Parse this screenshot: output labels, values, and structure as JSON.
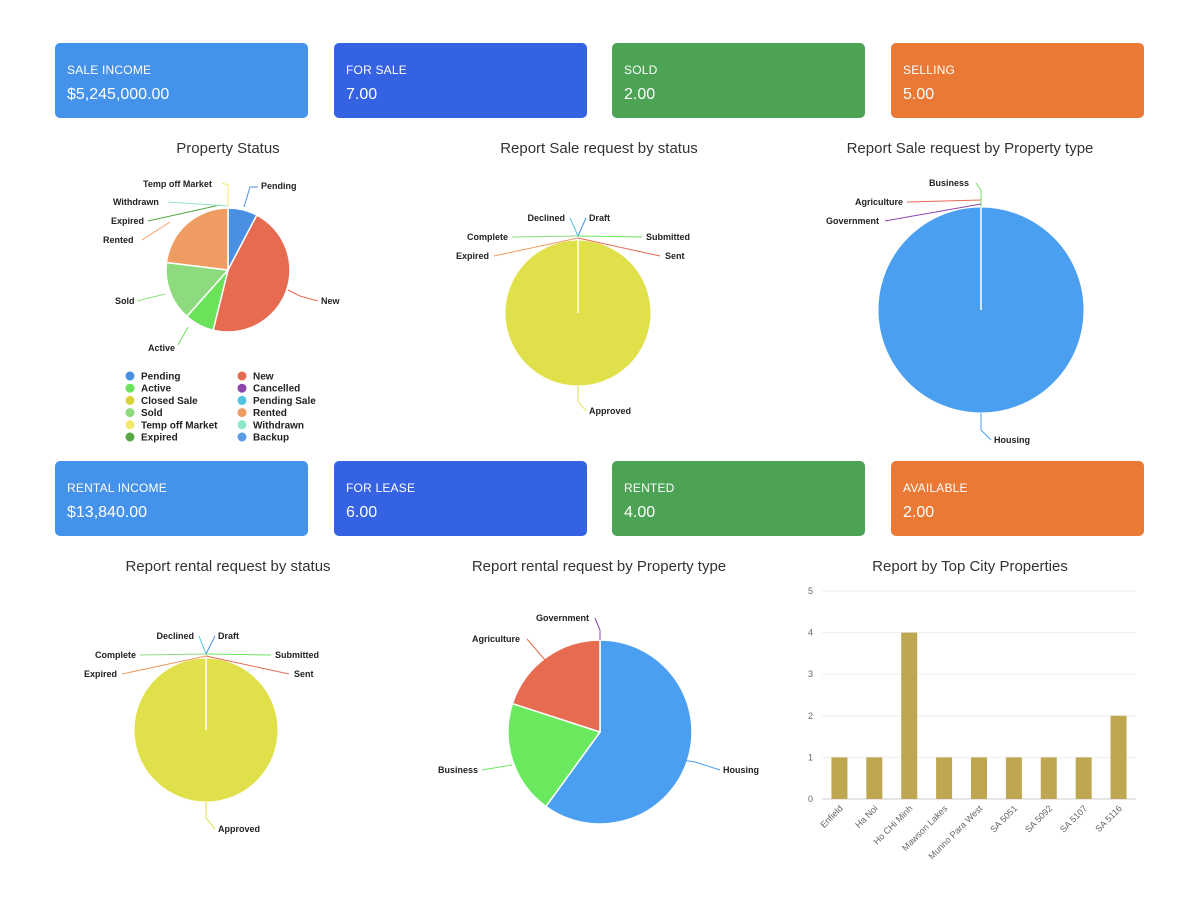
{
  "sale_cards": [
    {
      "label": "SALE INCOME",
      "value": "$5,245,000.00",
      "color": "#4592ea"
    },
    {
      "label": "FOR SALE",
      "value": "7.00",
      "color": "#3462e3"
    },
    {
      "label": "SOLD",
      "value": "2.00",
      "color": "#4ca353"
    },
    {
      "label": "SELLING",
      "value": "5.00",
      "color": "#ea7936"
    }
  ],
  "rental_cards": [
    {
      "label": "RENTAL INCOME",
      "value": "$13,840.00",
      "color": "#4592ea"
    },
    {
      "label": "FOR LEASE",
      "value": "6.00",
      "color": "#3462e3"
    },
    {
      "label": "RENTED",
      "value": "4.00",
      "color": "#4ca353"
    },
    {
      "label": "AVAILABLE",
      "value": "2.00",
      "color": "#ea7936"
    }
  ],
  "chart_data": [
    {
      "type": "pie",
      "title": "Property Status",
      "legend": "bottom",
      "slices": [
        {
          "label": "Pending",
          "value": 1,
          "color": "#4a90e2"
        },
        {
          "label": "New",
          "value": 6,
          "color": "#e66b51"
        },
        {
          "label": "Active",
          "value": 1,
          "color": "#6ae35b"
        },
        {
          "label": "Sold",
          "value": 2,
          "color": "#8edb7f"
        },
        {
          "label": "Rented",
          "value": 3,
          "color": "#ef9c62"
        },
        {
          "label": "Expired",
          "value": 0,
          "color": "#58a844"
        },
        {
          "label": "Withdrawn",
          "value": 0,
          "color": "#8fe8c6"
        },
        {
          "label": "Temp off Market",
          "value": 0,
          "color": "#f3e86c"
        }
      ],
      "legend_items": [
        {
          "label": "Pending",
          "color": "#4a90e2"
        },
        {
          "label": "New",
          "color": "#e66b51"
        },
        {
          "label": "Active",
          "color": "#6ae35b"
        },
        {
          "label": "Cancelled",
          "color": "#8e44ad"
        },
        {
          "label": "Closed Sale",
          "color": "#d8d33a"
        },
        {
          "label": "Pending Sale",
          "color": "#4fc3e0"
        },
        {
          "label": "Sold",
          "color": "#8edb7f"
        },
        {
          "label": "Rented",
          "color": "#ef9c62"
        },
        {
          "label": "Temp off Market",
          "color": "#f3e86c"
        },
        {
          "label": "Withdrawn",
          "color": "#8fe8c6"
        },
        {
          "label": "Expired",
          "color": "#58a844"
        },
        {
          "label": "Backup",
          "color": "#5b9be8"
        }
      ]
    },
    {
      "type": "pie",
      "title": "Report Sale request by status",
      "slices": [
        {
          "label": "Approved",
          "value": 1,
          "color": "#dfe04a"
        },
        {
          "label": "Draft",
          "value": 0,
          "color": "#4a90e2"
        },
        {
          "label": "Submitted",
          "value": 0,
          "color": "#6ae35b"
        },
        {
          "label": "Sent",
          "value": 0,
          "color": "#e66b51"
        },
        {
          "label": "Declined",
          "value": 0,
          "color": "#4fc3e0"
        },
        {
          "label": "Complete",
          "value": 0,
          "color": "#8edb7f"
        },
        {
          "label": "Expired",
          "value": 0,
          "color": "#ef9c62"
        }
      ]
    },
    {
      "type": "pie",
      "title": "Report Sale request by Property type",
      "slices": [
        {
          "label": "Housing",
          "value": 1,
          "color": "#4a9ff0"
        },
        {
          "label": "Business",
          "value": 0,
          "color": "#6ae35b"
        },
        {
          "label": "Agriculture",
          "value": 0,
          "color": "#e66b51"
        },
        {
          "label": "Government",
          "value": 0,
          "color": "#8e44ad"
        }
      ]
    },
    {
      "type": "pie",
      "title": "Report rental request by status",
      "slices": [
        {
          "label": "Approved",
          "value": 1,
          "color": "#dfe04a"
        },
        {
          "label": "Draft",
          "value": 0,
          "color": "#4a90e2"
        },
        {
          "label": "Submitted",
          "value": 0,
          "color": "#6ae35b"
        },
        {
          "label": "Sent",
          "value": 0,
          "color": "#e66b51"
        },
        {
          "label": "Declined",
          "value": 0,
          "color": "#4fc3e0"
        },
        {
          "label": "Complete",
          "value": 0,
          "color": "#8edb7f"
        },
        {
          "label": "Expired",
          "value": 0,
          "color": "#ef9c62"
        }
      ]
    },
    {
      "type": "pie",
      "title": "Report rental request by Property type",
      "slices": [
        {
          "label": "Housing",
          "value": 3,
          "color": "#4a9ff0"
        },
        {
          "label": "Business",
          "value": 1,
          "color": "#6ae85e"
        },
        {
          "label": "Agriculture",
          "value": 1,
          "color": "#e66b51"
        },
        {
          "label": "Government",
          "value": 0,
          "color": "#8e44ad"
        }
      ]
    },
    {
      "type": "bar",
      "title": "Report by Top City Properties",
      "color": "#bfa650",
      "categories": [
        "Enfield",
        "Ha Noi",
        "Ho CHi Minh",
        "Mawson Lakes",
        "Munno Para West",
        "SA 5051",
        "SA 5092",
        "SA 5107",
        "SA 5116"
      ],
      "values": [
        1,
        1,
        4,
        1,
        1,
        1,
        1,
        1,
        2
      ],
      "ylim": [
        0,
        5
      ],
      "yticks": [
        0,
        1,
        2,
        3,
        4,
        5
      ],
      "grid": true
    }
  ]
}
